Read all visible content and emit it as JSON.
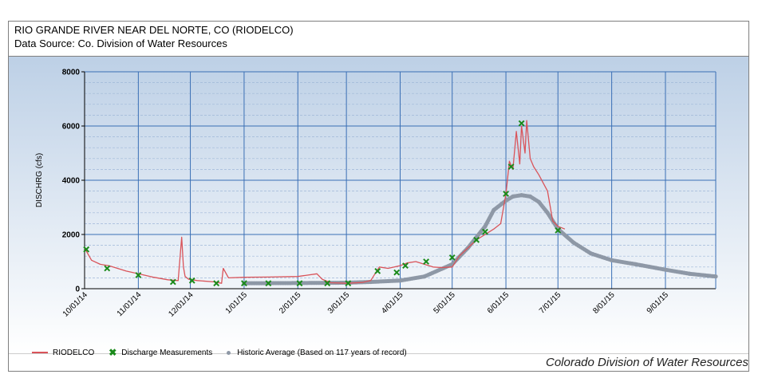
{
  "header": {
    "title": "RIO GRANDE RIVER NEAR DEL NORTE, CO (RIODELCO)",
    "subtitle": "Data Source: Co. Division of Water Resources"
  },
  "credit": "Colorado Division of Water Resources",
  "colors": {
    "series_line": "#d9545a",
    "measurement_marker": "#1a8a1a",
    "historic_average": "#8e98a6",
    "grid_major": "#3a6fb5",
    "grid_minor": "#9fb8d8"
  },
  "chart_data": {
    "type": "line",
    "ylabel": "DISCHRG (cfs)",
    "xlabel": "",
    "ylim": [
      0,
      8000
    ],
    "y_ticks": [
      "0",
      "2000",
      "4000",
      "6000",
      "8000"
    ],
    "x_range": [
      "2014-10-01",
      "2015-09-30"
    ],
    "x_tick_labels": [
      "10/01/14",
      "11/01/14",
      "12/01/14",
      "1/01/15",
      "2/01/15",
      "3/01/15",
      "4/01/15",
      "5/01/15",
      "6/01/15",
      "7/01/15",
      "8/01/15",
      "9/01/15"
    ],
    "x_ticks": [
      "2014-10-01",
      "2014-11-01",
      "2014-12-01",
      "2015-01-01",
      "2015-02-01",
      "2015-03-01",
      "2015-04-01",
      "2015-05-01",
      "2015-06-01",
      "2015-07-01",
      "2015-08-01",
      "2015-09-01"
    ],
    "grid": true,
    "legend_position": "bottom-left",
    "series": [
      {
        "name": "RIODELCO",
        "style": "line",
        "x": [
          "2014-10-01",
          "2014-10-05",
          "2014-10-10",
          "2014-10-15",
          "2014-10-20",
          "2014-10-25",
          "2014-11-01",
          "2014-11-10",
          "2014-11-18",
          "2014-11-24",
          "2014-11-26",
          "2014-11-27",
          "2014-11-28",
          "2014-11-30",
          "2014-12-05",
          "2014-12-15",
          "2014-12-19",
          "2014-12-20",
          "2014-12-23",
          "2015-01-01",
          "2015-01-15",
          "2015-02-01",
          "2015-02-12",
          "2015-02-15",
          "2015-02-20",
          "2015-03-01",
          "2015-03-10",
          "2015-03-15",
          "2015-03-20",
          "2015-03-25",
          "2015-04-01",
          "2015-04-05",
          "2015-04-10",
          "2015-04-15",
          "2015-04-20",
          "2015-04-25",
          "2015-05-01",
          "2015-05-05",
          "2015-05-10",
          "2015-05-15",
          "2015-05-20",
          "2015-05-25",
          "2015-05-29",
          "2015-06-01",
          "2015-06-03",
          "2015-06-05",
          "2015-06-07",
          "2015-06-09",
          "2015-06-10",
          "2015-06-12",
          "2015-06-13",
          "2015-06-15",
          "2015-06-17",
          "2015-06-20",
          "2015-06-25",
          "2015-06-28",
          "2015-07-01",
          "2015-07-05"
        ],
        "values": [
          1500,
          1050,
          900,
          850,
          750,
          650,
          550,
          420,
          330,
          300,
          1900,
          800,
          450,
          350,
          300,
          250,
          200,
          750,
          400,
          420,
          430,
          450,
          550,
          350,
          220,
          200,
          230,
          300,
          800,
          750,
          850,
          950,
          1000,
          900,
          800,
          780,
          800,
          1200,
          1500,
          1800,
          2000,
          2200,
          2400,
          3500,
          4700,
          4400,
          5800,
          4600,
          6000,
          5000,
          6200,
          4800,
          4500,
          4200,
          3600,
          2500,
          2300,
          2200
        ]
      },
      {
        "name": "Discharge Measurements",
        "style": "marker",
        "x": [
          "2014-10-02",
          "2014-10-14",
          "2014-11-01",
          "2014-11-21",
          "2014-12-02",
          "2014-12-16",
          "2015-01-01",
          "2015-01-15",
          "2015-02-02",
          "2015-02-18",
          "2015-03-02",
          "2015-03-19",
          "2015-03-30",
          "2015-04-04",
          "2015-04-16",
          "2015-05-01",
          "2015-05-15",
          "2015-05-20",
          "2015-06-01",
          "2015-06-04",
          "2015-06-10",
          "2015-07-01"
        ],
        "values": [
          1450,
          750,
          500,
          250,
          300,
          200,
          200,
          200,
          200,
          200,
          200,
          650,
          600,
          850,
          1000,
          1150,
          1800,
          2100,
          3500,
          4500,
          6100,
          2150
        ]
      },
      {
        "name": "Historic Average (Based on 117 years of record)",
        "style": "dots",
        "x": [
          "2015-01-01",
          "2015-02-01",
          "2015-03-01",
          "2015-03-15",
          "2015-04-01",
          "2015-04-15",
          "2015-05-01",
          "2015-05-10",
          "2015-05-20",
          "2015-05-25",
          "2015-06-01",
          "2015-06-05",
          "2015-06-10",
          "2015-06-15",
          "2015-06-20",
          "2015-06-25",
          "2015-07-01",
          "2015-07-10",
          "2015-07-20",
          "2015-08-01",
          "2015-08-15",
          "2015-09-01",
          "2015-09-15",
          "2015-09-30"
        ],
        "values": [
          200,
          210,
          220,
          250,
          300,
          450,
          900,
          1500,
          2300,
          2900,
          3250,
          3400,
          3450,
          3400,
          3200,
          2800,
          2200,
          1700,
          1300,
          1050,
          900,
          700,
          550,
          450
        ]
      }
    ]
  }
}
